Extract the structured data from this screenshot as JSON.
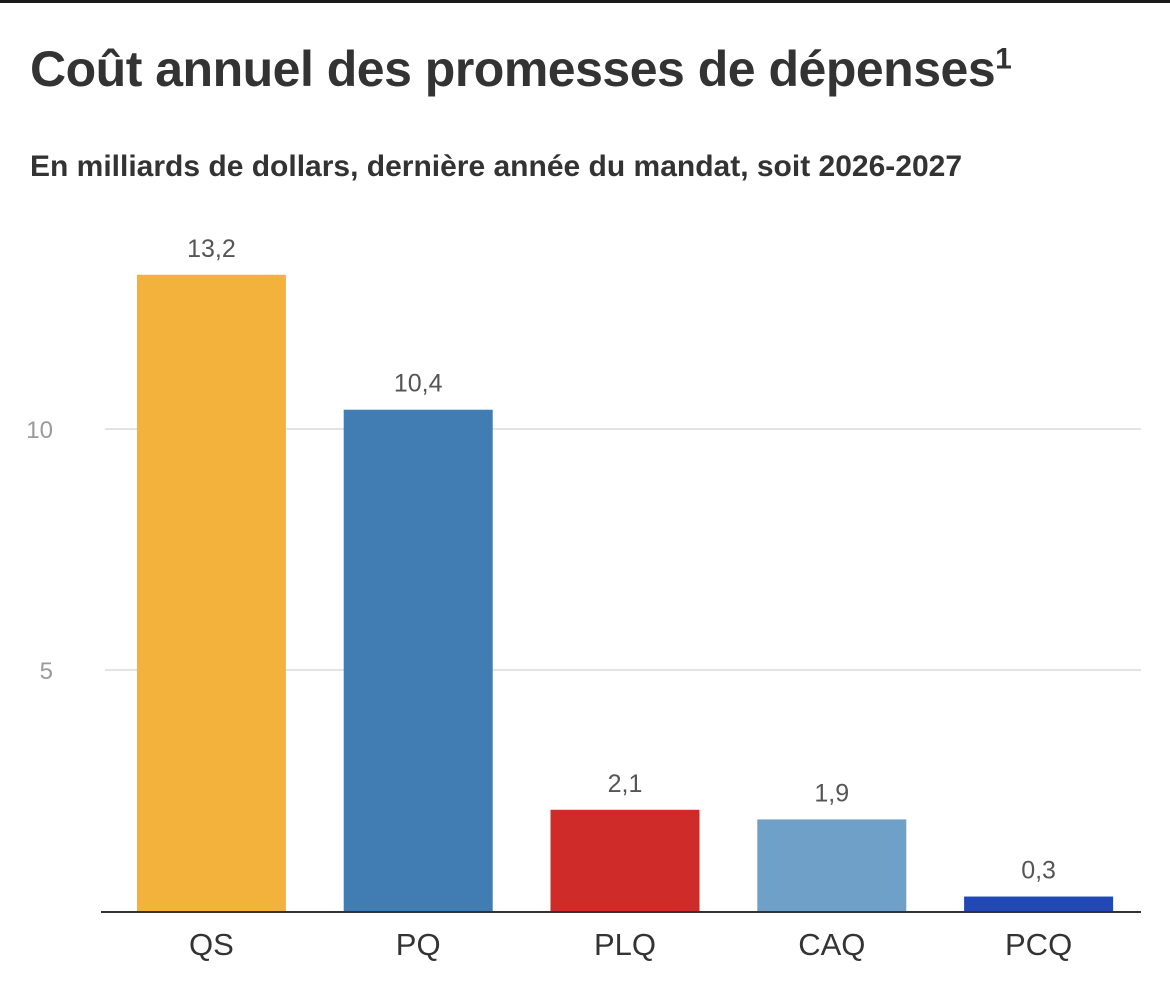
{
  "chart_data": {
    "type": "bar",
    "title": "Coût annuel des promesses de dépenses",
    "title_footnote": "1",
    "subtitle": "En milliards de dollars, dernière année du mandat, soit 2026-2027",
    "categories": [
      "QS",
      "PQ",
      "PLQ",
      "CAQ",
      "PCQ"
    ],
    "values": [
      13.2,
      10.4,
      2.1,
      1.9,
      0.3
    ],
    "value_labels": [
      "13,2",
      "10,4",
      "2,1",
      "1,9",
      "0,3"
    ],
    "colors": [
      "#f2b23b",
      "#417cb3",
      "#cf2b28",
      "#6fa1c8",
      "#2248b8"
    ],
    "yticks": [
      5,
      10
    ],
    "ytick_labels": [
      "5",
      "10"
    ],
    "ylim": [
      0,
      14
    ],
    "xlabel": "",
    "ylabel": "",
    "grid": true
  }
}
